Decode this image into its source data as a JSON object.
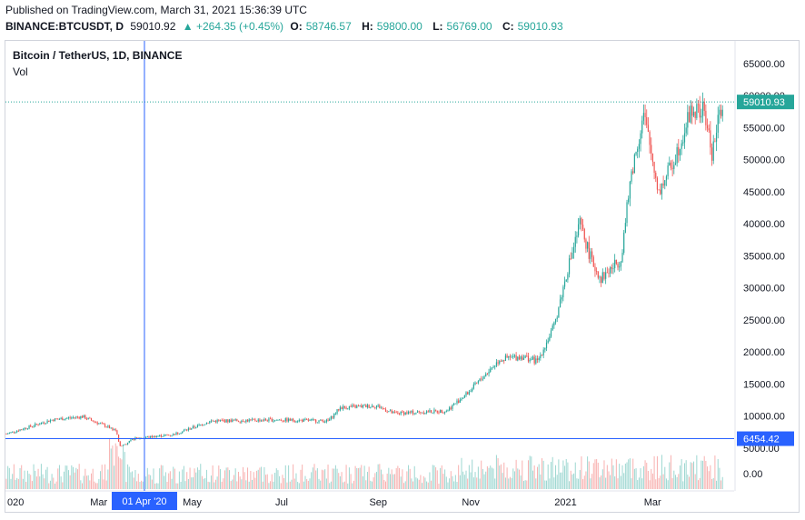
{
  "header": {
    "published": "Published on TradingView.com, March 31, 2021 15:36:39 UTC",
    "symbol": "BINANCE:BTCUSDT, D",
    "last": "59010.92",
    "change": "▲ +264.35 (+0.45%)",
    "open_label": "O:",
    "open": "58746.57",
    "high_label": "H:",
    "high": "59800.00",
    "low_label": "L:",
    "low": "56769.00",
    "close_label": "C:",
    "close": "59010.93"
  },
  "legend": {
    "title": "Bitcoin / TetherUS, 1D, BINANCE",
    "vol": "Vol"
  },
  "colors": {
    "up": "#26a69a",
    "down": "#ef5350",
    "crosshair": "#2962ff",
    "price_tag": "#26a69a"
  },
  "chart_data": {
    "type": "candlestick",
    "price_axis": {
      "ticks": [
        "65000.00",
        "60000.00",
        "55000.00",
        "50000.00",
        "45000.00",
        "40000.00",
        "35000.00",
        "30000.00",
        "25000.00",
        "20000.00",
        "15000.00",
        "10000.00",
        "5000.00"
      ],
      "tick_values": [
        65000,
        60000,
        55000,
        50000,
        45000,
        40000,
        35000,
        30000,
        25000,
        20000,
        15000,
        10000,
        5000
      ],
      "range": [
        -1700,
        68400
      ]
    },
    "volume_axis_label": "0.00",
    "x_ticks": [
      {
        "label": "020",
        "day": 0
      },
      {
        "label": "Mar",
        "day": 60
      },
      {
        "label": "May",
        "day": 121
      },
      {
        "label": "Jul",
        "day": 182
      },
      {
        "label": "Sep",
        "day": 244
      },
      {
        "label": "Nov",
        "day": 305
      },
      {
        "label": "2021",
        "day": 366
      },
      {
        "label": "Mar",
        "day": 425
      }
    ],
    "last_price_label": "59010.93",
    "last_price": 59010.93,
    "crosshair": {
      "price_label": "6454.42",
      "price": 6454.42,
      "date_label": "01 Apr '20",
      "day": 91
    },
    "anchors": [
      [
        0,
        7200
      ],
      [
        30,
        9400
      ],
      [
        50,
        9900
      ],
      [
        72,
        7800
      ],
      [
        75,
        5200
      ],
      [
        85,
        6500
      ],
      [
        110,
        7100
      ],
      [
        135,
        9200
      ],
      [
        180,
        9400
      ],
      [
        212,
        9200
      ],
      [
        220,
        11300
      ],
      [
        244,
        11600
      ],
      [
        255,
        10400
      ],
      [
        290,
        10800
      ],
      [
        305,
        13800
      ],
      [
        325,
        18800
      ],
      [
        340,
        19300
      ],
      [
        350,
        18500
      ],
      [
        361,
        24000
      ],
      [
        370,
        33000
      ],
      [
        378,
        40000
      ],
      [
        386,
        34000
      ],
      [
        392,
        31500
      ],
      [
        405,
        34500
      ],
      [
        412,
        48000
      ],
      [
        420,
        57000
      ],
      [
        430,
        45000
      ],
      [
        440,
        50000
      ],
      [
        451,
        57500
      ],
      [
        460,
        57500
      ],
      [
        465,
        51000
      ],
      [
        472,
        59000
      ]
    ]
  }
}
